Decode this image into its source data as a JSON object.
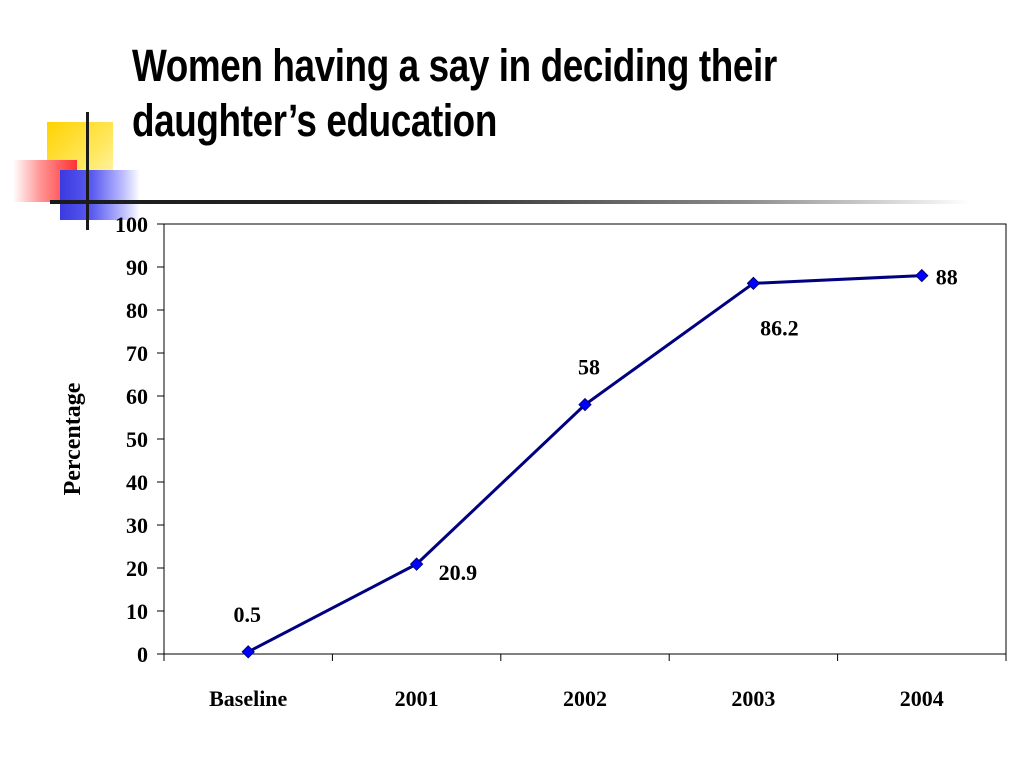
{
  "slide": {
    "title": "Women having a say in deciding their daughter’s education"
  },
  "colors": {
    "line": "#000080",
    "marker": "#0000ff",
    "accent_yellow": "#ffd200",
    "accent_red": "#ff3030",
    "accent_blue": "#3a3ae0"
  },
  "chart_data": {
    "type": "line",
    "title": "",
    "xlabel": "",
    "ylabel": "Percentage",
    "categories": [
      "Baseline",
      "2001",
      "2002",
      "2003",
      "2004"
    ],
    "series": [
      {
        "values": [
          0.5,
          20.9,
          58,
          86.2,
          88
        ]
      }
    ],
    "data_labels": [
      "0.5",
      "20.9",
      "58",
      "86.2",
      "88"
    ],
    "ylim": [
      0,
      100
    ],
    "yticks": [
      0,
      10,
      20,
      30,
      40,
      50,
      60,
      70,
      80,
      90,
      100
    ],
    "grid": false,
    "legend": "none",
    "marker": "diamond"
  }
}
